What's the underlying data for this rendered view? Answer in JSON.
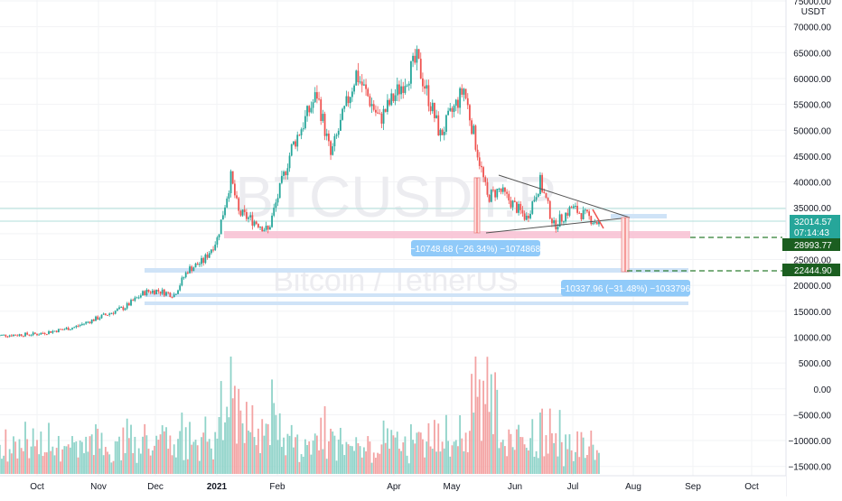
{
  "chart": {
    "watermark_symbol": "BTCUSDT.P",
    "watermark_name": "Bitcoin / TetherUS",
    "currency": "USDT",
    "price_axis": {
      "ticks": [
        "75000.00",
        "70000.00",
        "65000.00",
        "60000.00",
        "55000.00",
        "50000.00",
        "45000.00",
        "40000.00",
        "35000.00",
        "30000.00",
        "25000.00",
        "20000.00",
        "15000.00",
        "10000.00",
        "5000.00",
        "0.00",
        "−5000.00",
        "−10000.00",
        "−15000.00"
      ]
    },
    "time_axis": {
      "ticks": [
        "Oct",
        "Nov",
        "Dec",
        "2021",
        "Feb",
        "Apr",
        "May",
        "Jun",
        "Jul",
        "Aug",
        "Sep",
        "Oct"
      ]
    },
    "badges": {
      "current_price": "32014.57",
      "countdown": "07:14:43",
      "level_1": "28993.77",
      "level_2": "22444.90"
    },
    "measures": {
      "m1": "−10748.68 (−26.34%) −1074868",
      "m2": "−10337.96 (−31.48%) −1033796"
    },
    "colors": {
      "up": "#26a69a",
      "down": "#ef5350",
      "vol_up": "#8fd3c9",
      "vol_down": "#f3a3a3",
      "zone_pink": "#f8bbd0",
      "zone_blue": "#bbdefb",
      "badge_green": "#1b5e20",
      "measure_bg": "#90caf9"
    }
  },
  "chart_data": {
    "type": "candlestick",
    "x_range": [
      "2020-09-10",
      "2021-10-20"
    ],
    "y_range": [
      0,
      75000
    ],
    "y_scale": "linear",
    "closes": [
      {
        "date": "2020-09-10",
        "close": 10300
      },
      {
        "date": "2020-10-01",
        "close": 10600
      },
      {
        "date": "2020-10-20",
        "close": 11900
      },
      {
        "date": "2020-11-01",
        "close": 13700
      },
      {
        "date": "2020-11-15",
        "close": 15800
      },
      {
        "date": "2020-11-25",
        "close": 18700
      },
      {
        "date": "2020-12-01",
        "close": 19000
      },
      {
        "date": "2020-12-10",
        "close": 18200
      },
      {
        "date": "2020-12-17",
        "close": 23000
      },
      {
        "date": "2020-12-25",
        "close": 24700
      },
      {
        "date": "2021-01-01",
        "close": 29000
      },
      {
        "date": "2021-01-08",
        "close": 40800
      },
      {
        "date": "2021-01-12",
        "close": 34000
      },
      {
        "date": "2021-01-22",
        "close": 32000
      },
      {
        "date": "2021-01-27",
        "close": 30500
      },
      {
        "date": "2021-02-08",
        "close": 46500
      },
      {
        "date": "2021-02-21",
        "close": 57000
      },
      {
        "date": "2021-02-28",
        "close": 45000
      },
      {
        "date": "2021-03-13",
        "close": 61000
      },
      {
        "date": "2021-03-25",
        "close": 52000
      },
      {
        "date": "2021-04-13",
        "close": 63500
      },
      {
        "date": "2021-04-25",
        "close": 49000
      },
      {
        "date": "2021-05-07",
        "close": 58000
      },
      {
        "date": "2021-05-19",
        "close": 37000
      },
      {
        "date": "2021-05-25",
        "close": 38500
      },
      {
        "date": "2021-06-08",
        "close": 33000
      },
      {
        "date": "2021-06-15",
        "close": 40000
      },
      {
        "date": "2021-06-22",
        "close": 31500
      },
      {
        "date": "2021-07-01",
        "close": 35000
      },
      {
        "date": "2021-07-15",
        "close": 32000
      }
    ]
  }
}
